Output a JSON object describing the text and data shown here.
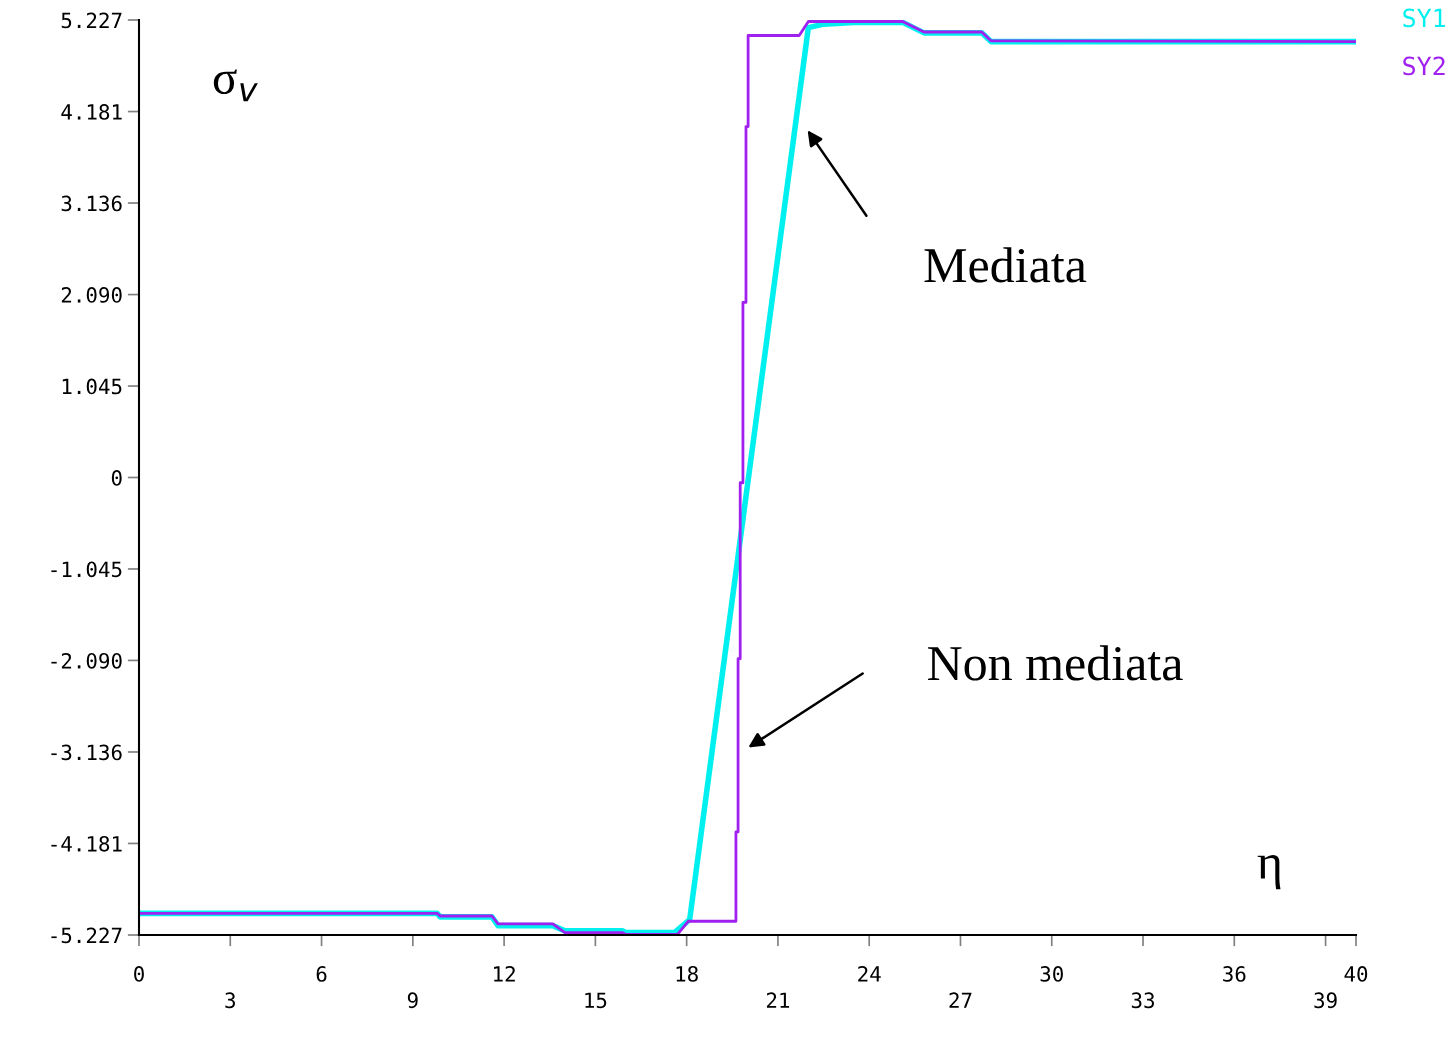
{
  "chart_data": {
    "type": "line",
    "xlabel": "η",
    "ylabel": "σ$_{v}$",
    "xlim": [
      0,
      40
    ],
    "xticks": [
      0,
      {
        "value": 3,
        "label": null
      },
      6,
      {
        "value": 9,
        "label": null
      },
      12,
      {
        "value": 15,
        "label": null
      },
      18,
      {
        "value": 21,
        "label": null
      },
      24,
      {
        "value": 27,
        "label": null
      },
      30,
      {
        "value": 33,
        "label": null
      },
      36,
      {
        "value": 39,
        "label": null
      },
      40
    ],
    "x2lim": [
      0,
      40
    ],
    "x2ticks": [
      3,
      9,
      15,
      21,
      27,
      33,
      39
    ],
    "ylim": [
      -5.227,
      5.227
    ],
    "yticks": [
      -5.227,
      -4.181,
      -3.136,
      {
        "value": -2.09,
        "label": "-2.090"
      },
      -1.045,
      0,
      1.045,
      {
        "value": 2.09,
        "label": "2.090"
      },
      3.136,
      4.181,
      5.227
    ],
    "grid": false,
    "legend": "top right",
    "marker": "none",
    "line_style": "solid",
    "series": [
      {
        "name": "SY1",
        "color": "#00f0f0",
        "x": [
          0,
          9.8,
          9.9,
          11.6,
          11.8,
          13.6,
          14.0,
          15.9,
          16.0,
          17.6,
          18.1,
          22.0,
          22.5,
          23.5,
          25.1,
          25.8,
          27.7,
          28.0,
          40
        ],
        "values": [
          -4.98,
          -4.98,
          -5.02,
          -5.02,
          -5.12,
          -5.12,
          -5.18,
          -5.18,
          -5.2,
          -5.2,
          -5.05,
          5.14,
          5.18,
          5.2,
          5.2,
          5.08,
          5.08,
          4.98,
          4.98
        ]
      },
      {
        "name": "SY2",
        "color": "#a020f0",
        "x": [
          0,
          9.8,
          9.9,
          11.6,
          11.8,
          13.6,
          14.0,
          15.9,
          16.0,
          17.7,
          18.05,
          19.62,
          19.62,
          19.69,
          19.69,
          19.76,
          19.76,
          19.85,
          19.85,
          19.95,
          19.95,
          20.02,
          20.02,
          21.7,
          22.0,
          25.1,
          25.8,
          27.7,
          28.0,
          40
        ],
        "values": [
          -4.98,
          -4.98,
          -5.01,
          -5.01,
          -5.1,
          -5.1,
          -5.2,
          -5.2,
          -5.22,
          -5.22,
          -5.07,
          -5.07,
          -4.05,
          -4.05,
          -2.07,
          -2.07,
          -0.06,
          -0.06,
          2.0,
          2.0,
          4.01,
          4.01,
          5.05,
          5.05,
          5.21,
          5.21,
          5.09,
          5.09,
          4.99,
          4.98
        ]
      }
    ],
    "annotations": [
      "Mediata",
      "Non mediata"
    ]
  }
}
